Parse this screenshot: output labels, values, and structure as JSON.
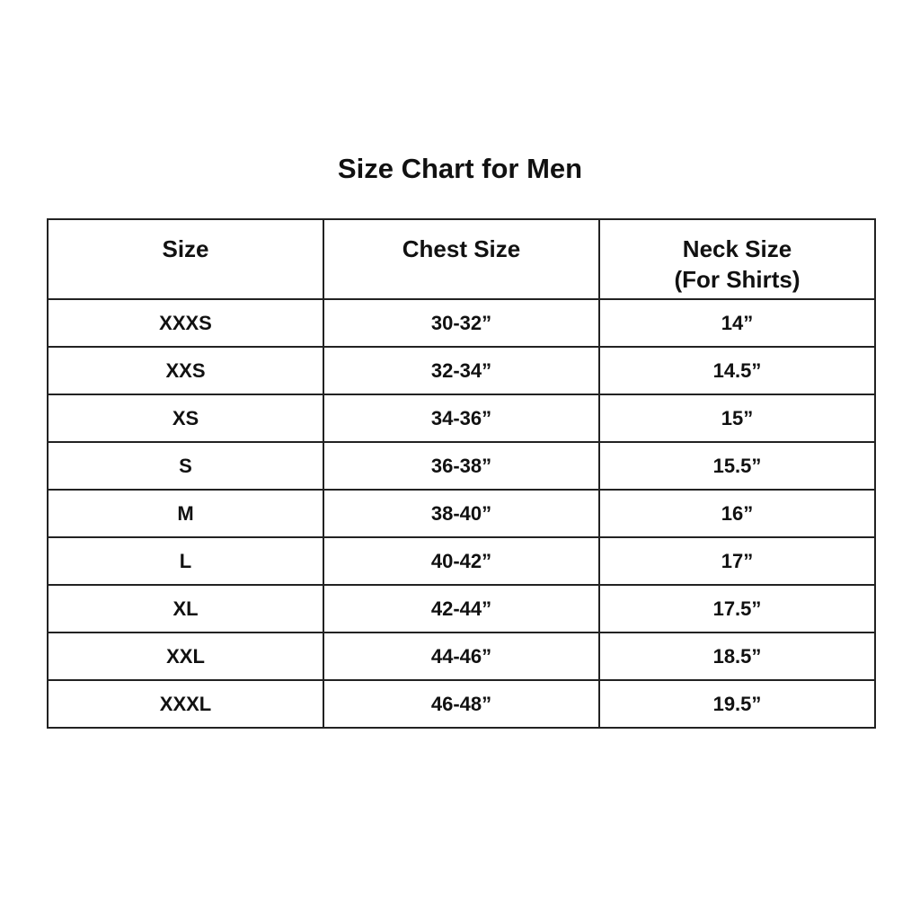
{
  "title": "Size Chart for Men",
  "table": {
    "headers": [
      "Size",
      "Chest Size",
      "Neck Size",
      "(For Shirts)"
    ],
    "rows": [
      [
        "XXXS",
        "30-32”",
        "14”"
      ],
      [
        "XXS",
        "32-34”",
        "14.5”"
      ],
      [
        "XS",
        "34-36”",
        "15”"
      ],
      [
        "S",
        "36-38”",
        "15.5”"
      ],
      [
        "M",
        "38-40”",
        "16”"
      ],
      [
        "L",
        "40-42”",
        "17”"
      ],
      [
        "XL",
        "42-44”",
        "17.5”"
      ],
      [
        "XXL",
        "44-46”",
        "18.5”"
      ],
      [
        "XXXL",
        "46-48”",
        "19.5”"
      ]
    ]
  }
}
